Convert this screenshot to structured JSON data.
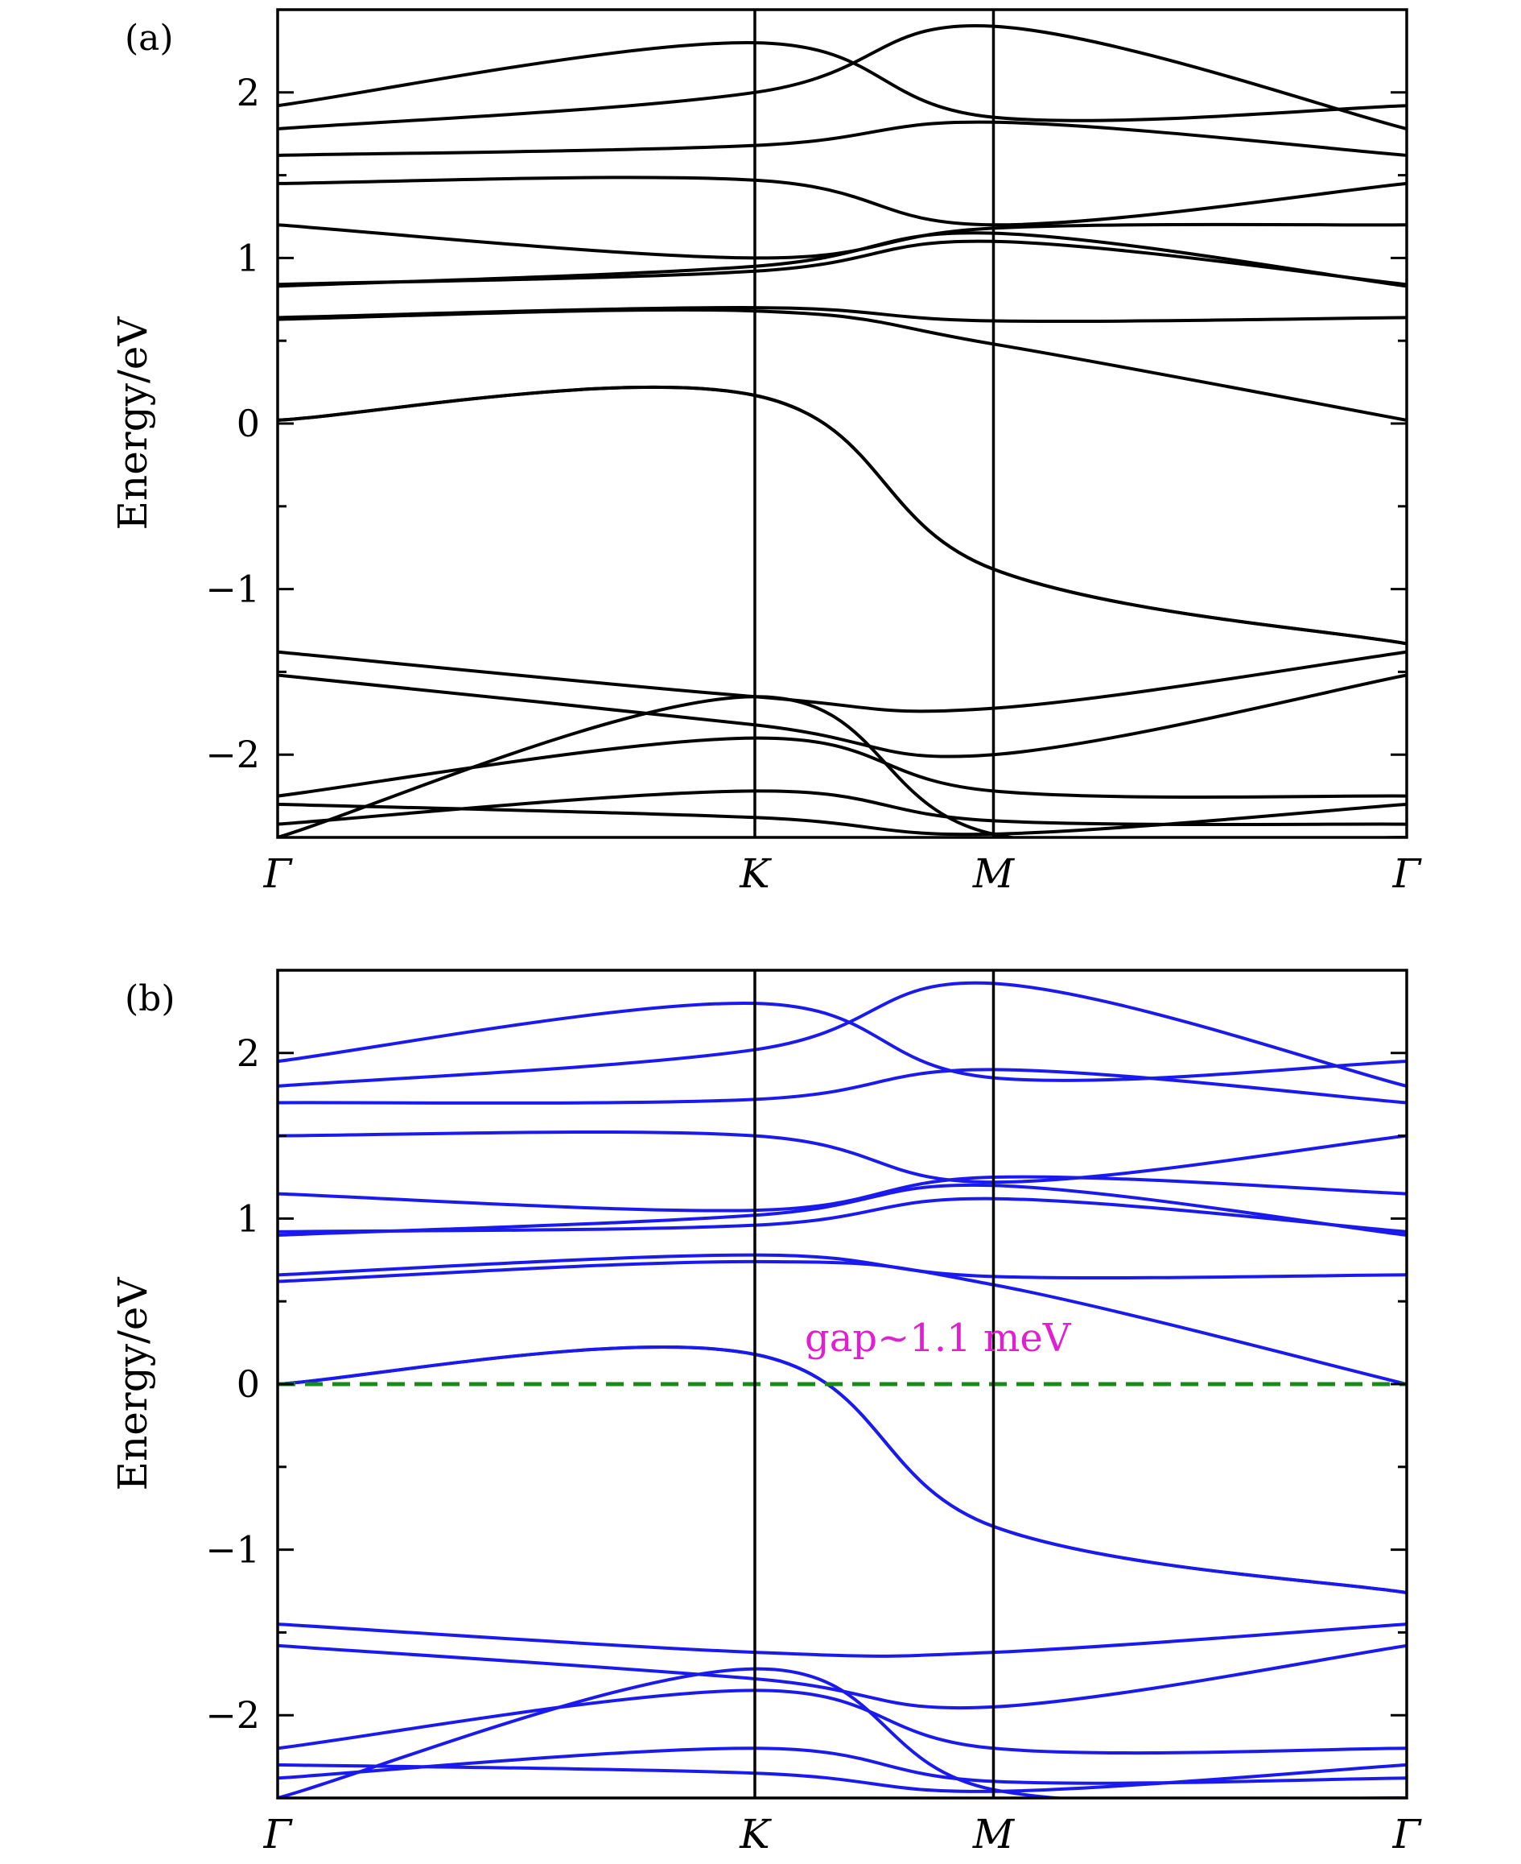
{
  "chart_data": [
    {
      "type": "line",
      "panel_label": "(a)",
      "ylabel": "Energy/eV",
      "ylim": [
        -2.5,
        2.5
      ],
      "yticks": [
        2,
        1,
        0,
        -1,
        -2
      ],
      "ytick_labels": [
        "2",
        "1",
        "0",
        "−1",
        "−2"
      ],
      "x_points": [
        0,
        2,
        3,
        4.732
      ],
      "x_labels": [
        "Γ",
        "K",
        "M",
        "Γ"
      ],
      "line_color": "#000000",
      "annotation": "",
      "reference_line": null,
      "series": [
        {
          "y": [
            0.02,
            0.17,
            -0.88,
            -1.33
          ]
        },
        {
          "y": [
            0.02,
            0.17,
            -0.88,
            -1.33
          ]
        },
        {
          "y": [
            0.64,
            0.7,
            0.62,
            0.64
          ]
        },
        {
          "y": [
            0.63,
            0.68,
            0.48,
            0.02
          ]
        },
        {
          "y": [
            0.83,
            0.95,
            1.15,
            0.83
          ]
        },
        {
          "y": [
            0.84,
            0.92,
            1.1,
            0.84
          ]
        },
        {
          "y": [
            1.2,
            1.0,
            1.18,
            1.2
          ]
        },
        {
          "y": [
            1.45,
            1.47,
            1.2,
            1.45
          ]
        },
        {
          "y": [
            1.62,
            1.68,
            1.82,
            1.62
          ]
        },
        {
          "y": [
            1.78,
            2.0,
            2.4,
            1.78
          ]
        },
        {
          "y": [
            1.92,
            2.3,
            1.85,
            1.92
          ]
        },
        {
          "y": [
            -1.38,
            -1.65,
            -1.72,
            -1.38
          ]
        },
        {
          "y": [
            -1.52,
            -1.82,
            -2.0,
            -1.52
          ]
        },
        {
          "y": [
            -2.25,
            -1.9,
            -2.22,
            -2.25
          ]
        },
        {
          "y": [
            -2.42,
            -2.22,
            -2.4,
            -2.42
          ]
        },
        {
          "y": [
            -2.5,
            -1.65,
            -2.48,
            -2.5
          ]
        },
        {
          "y": [
            -2.3,
            -2.38,
            -2.48,
            -2.3
          ]
        }
      ]
    },
    {
      "type": "line",
      "panel_label": "(b)",
      "ylabel": "Energy/eV",
      "ylim": [
        -2.5,
        2.5
      ],
      "yticks": [
        2,
        1,
        0,
        -1,
        -2
      ],
      "ytick_labels": [
        "2",
        "1",
        "0",
        "−1",
        "−2"
      ],
      "x_points": [
        0,
        2,
        3,
        4.732
      ],
      "x_labels": [
        "Γ",
        "K",
        "M",
        "Γ"
      ],
      "line_color": "#1a1aee",
      "annotation": "gap~1.1 meV",
      "reference_line": {
        "y": 0,
        "color": "#1a8a1a",
        "dash": true
      },
      "series": [
        {
          "y": [
            0.0,
            0.18,
            -0.86,
            -1.26
          ]
        },
        {
          "y": [
            0.0,
            0.18,
            -0.86,
            -1.26
          ]
        },
        {
          "y": [
            0.66,
            0.78,
            0.65,
            0.66
          ]
        },
        {
          "y": [
            0.62,
            0.74,
            0.6,
            0.0
          ]
        },
        {
          "y": [
            0.9,
            1.02,
            1.2,
            0.9
          ]
        },
        {
          "y": [
            0.92,
            0.96,
            1.12,
            0.92
          ]
        },
        {
          "y": [
            1.15,
            1.05,
            1.25,
            1.15
          ]
        },
        {
          "y": [
            1.5,
            1.5,
            1.22,
            1.5
          ]
        },
        {
          "y": [
            1.7,
            1.72,
            1.9,
            1.7
          ]
        },
        {
          "y": [
            1.8,
            2.02,
            2.42,
            1.8
          ]
        },
        {
          "y": [
            1.95,
            2.3,
            1.85,
            1.95
          ]
        },
        {
          "y": [
            -1.45,
            -1.62,
            -1.62,
            -1.45
          ]
        },
        {
          "y": [
            -1.58,
            -1.78,
            -1.95,
            -1.58
          ]
        },
        {
          "y": [
            -2.2,
            -1.85,
            -2.2,
            -2.2
          ]
        },
        {
          "y": [
            -2.38,
            -2.2,
            -2.4,
            -2.38
          ]
        },
        {
          "y": [
            -2.5,
            -1.72,
            -2.45,
            -2.5
          ]
        },
        {
          "y": [
            -2.3,
            -2.35,
            -2.46,
            -2.3
          ]
        }
      ]
    }
  ]
}
